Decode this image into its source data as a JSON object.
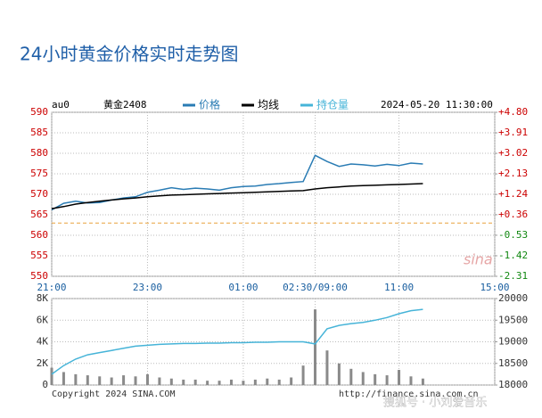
{
  "chart_data": [
    {
      "type": "line",
      "title": "24小时黄金价格实时走势图",
      "symbol": "au0",
      "contract": "黄金2408",
      "timestamp": "2024-05-20 11:30:00",
      "watermark": "sina",
      "x": [
        0,
        15,
        30,
        45,
        60,
        75,
        90,
        105,
        120,
        135,
        150,
        165,
        180,
        195,
        210,
        225,
        240,
        255,
        270,
        285,
        300,
        315,
        330,
        345,
        360,
        375,
        390,
        405,
        420,
        435,
        450,
        465
      ],
      "xlim": [
        0,
        555
      ],
      "xticks": [
        {
          "value": 0,
          "label": "21:00"
        },
        {
          "value": 120,
          "label": "23:00"
        },
        {
          "value": 240,
          "label": "01:00"
        },
        {
          "value": 330,
          "label": "02:30/09:00"
        },
        {
          "value": 435,
          "label": "11:00"
        },
        {
          "value": 555,
          "label": "15:00"
        }
      ],
      "ylim": [
        550,
        590
      ],
      "yticks": [
        550,
        555,
        560,
        565,
        570,
        575,
        580,
        585,
        590
      ],
      "y2lim": [
        -2.31,
        4.8
      ],
      "y2ticks": [
        {
          "value": 4.8,
          "label": "+4.80"
        },
        {
          "value": 3.91,
          "label": "+3.91"
        },
        {
          "value": 3.02,
          "label": "+3.02"
        },
        {
          "value": 2.13,
          "label": "+2.13"
        },
        {
          "value": 1.24,
          "label": "+1.24"
        },
        {
          "value": 0.36,
          "label": "+0.36"
        },
        {
          "value": -0.53,
          "label": "-0.53"
        },
        {
          "value": -1.42,
          "label": "-1.42"
        },
        {
          "value": -2.31,
          "label": "-2.31"
        }
      ],
      "ref_line": 563,
      "grid": true,
      "series": [
        {
          "name": "价格",
          "color": "#2a7cb4",
          "values": [
            566.2,
            567.8,
            568.3,
            567.9,
            568.0,
            568.6,
            569.1,
            569.4,
            570.5,
            571.0,
            571.6,
            571.2,
            571.5,
            571.3,
            571.0,
            571.6,
            571.9,
            572.0,
            572.4,
            572.6,
            572.9,
            573.1,
            579.5,
            578.0,
            576.8,
            577.4,
            577.2,
            576.9,
            577.3,
            577.0,
            577.6,
            577.4
          ]
        },
        {
          "name": "均线",
          "color": "#000000",
          "values": [
            566.5,
            567.0,
            567.6,
            568.0,
            568.3,
            568.6,
            568.9,
            569.1,
            569.4,
            569.6,
            569.8,
            569.9,
            570.0,
            570.1,
            570.2,
            570.3,
            570.4,
            570.5,
            570.6,
            570.7,
            570.8,
            570.9,
            571.3,
            571.6,
            571.8,
            572.0,
            572.1,
            572.2,
            572.3,
            572.4,
            572.5,
            572.6
          ]
        }
      ]
    },
    {
      "type": "bar",
      "x": [
        0,
        15,
        30,
        45,
        60,
        75,
        90,
        105,
        120,
        135,
        150,
        165,
        180,
        195,
        210,
        225,
        240,
        255,
        270,
        285,
        300,
        315,
        330,
        345,
        360,
        375,
        390,
        405,
        420,
        435,
        450,
        465
      ],
      "xlim": [
        0,
        555
      ],
      "ylim": [
        0,
        8000
      ],
      "yticks": [
        0,
        {
          "value": 2000,
          "label": "2K"
        },
        {
          "value": 4000,
          "label": "4K"
        },
        {
          "value": 6000,
          "label": "6K"
        },
        {
          "value": 8000,
          "label": "8K"
        }
      ],
      "y2lim": [
        18000,
        20000
      ],
      "y2ticks": [
        18000,
        18500,
        19000,
        19500,
        20000
      ],
      "series": [
        {
          "color": "#8a8a8a",
          "values": [
            1600,
            1200,
            1000,
            900,
            800,
            700,
            900,
            800,
            1000,
            700,
            600,
            500,
            500,
            400,
            400,
            500,
            400,
            500,
            600,
            500,
            700,
            1800,
            7000,
            3200,
            2000,
            1500,
            1200,
            1000,
            900,
            1400,
            800,
            600
          ]
        },
        {
          "name": "持仓量",
          "color": "#46b4d8",
          "axis": "y2",
          "values": [
            18250,
            18450,
            18600,
            18700,
            18750,
            18800,
            18850,
            18900,
            18920,
            18940,
            18950,
            18960,
            18960,
            18970,
            18970,
            18980,
            18980,
            18990,
            18990,
            19000,
            19000,
            19000,
            18950,
            19300,
            19380,
            19420,
            19450,
            19500,
            19560,
            19650,
            19720,
            19750
          ]
        }
      ]
    }
  ],
  "footer": {
    "copyright": "Copyright 2024 SINA.COM",
    "url": "http://finance.sina.com.cn",
    "watermark": "搜狐号 · 小刘爱音乐"
  }
}
